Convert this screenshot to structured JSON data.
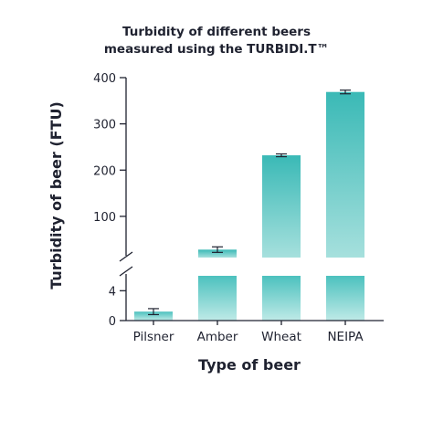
{
  "chart_data": {
    "type": "bar",
    "title_lines": [
      "Turbidity of different beers",
      "measured using the TURBIDI.T™"
    ],
    "xlabel": "Type of beer",
    "ylabel": "Turbidity of beer (FTU)",
    "categories": [
      "Pilsner",
      "Amber",
      "Wheat",
      "NEIPA"
    ],
    "values": [
      1.2,
      28,
      232,
      369
    ],
    "error": [
      0.4,
      6,
      3,
      4
    ],
    "axis_break": true,
    "lower_segment": {
      "range": [
        0,
        6
      ],
      "ticks": [
        "0",
        "4"
      ]
    },
    "upper_segment": {
      "range": [
        0,
        400
      ],
      "ticks": [
        "100",
        "200",
        "300",
        "400"
      ]
    },
    "bar_color_top": "#3ab9b6",
    "bar_color_bottom": "#bfeae7",
    "grid": false,
    "legend": "none"
  }
}
